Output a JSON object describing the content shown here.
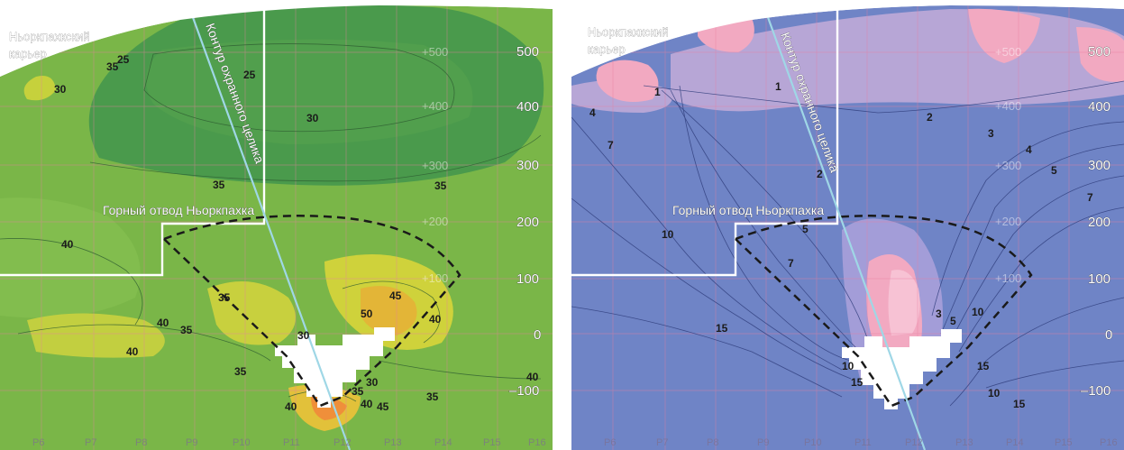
{
  "panels": [
    {
      "quarry_label_line1": "Ньоркпахкский",
      "quarry_label_line2": "карьер",
      "pillar_label": "Контур охранного целика",
      "allotment_label": "Горный отвод Ньоркпахка",
      "y_ticks": [
        "500",
        "400",
        "300",
        "200",
        "100",
        "0",
        "–100"
      ],
      "x_ticks": [
        "P6",
        "P7",
        "P8",
        "P9",
        "P10",
        "P11",
        "P12",
        "P13",
        "P14",
        "P15",
        "P16"
      ],
      "faint_ticks": [
        "+500",
        "+400",
        "+300",
        "+200",
        "+100"
      ],
      "contour_labels": [
        "25",
        "25",
        "35",
        "30",
        "30",
        "35",
        "35",
        "40",
        "40",
        "35",
        "35",
        "40",
        "35",
        "30",
        "30",
        "35",
        "40",
        "45",
        "50",
        "40",
        "40",
        "35",
        "40",
        "45"
      ]
    },
    {
      "quarry_label_line1": "Ньоркпахкский",
      "quarry_label_line2": "карьер",
      "pillar_label": "Контур охранного целика",
      "allotment_label": "Горный отвод Ньоркпахка",
      "y_ticks": [
        "500",
        "400",
        "300",
        "200",
        "100",
        "0",
        "–100"
      ],
      "x_ticks": [
        "P6",
        "P7",
        "P8",
        "P9",
        "P10",
        "P11",
        "P12",
        "P13",
        "P14",
        "P15",
        "P16"
      ],
      "faint_ticks": [
        "+500",
        "+400",
        "+300",
        "+200",
        "+100"
      ],
      "contour_labels": [
        "1",
        "1",
        "2",
        "3",
        "4",
        "5",
        "7",
        "2",
        "4",
        "7",
        "10",
        "15",
        "5",
        "7",
        "10",
        "15",
        "10",
        "15",
        "10",
        "15",
        "3",
        "5"
      ]
    }
  ],
  "colors": {
    "left_base": "#7ab648",
    "left_dark": "#4a9a4c",
    "left_yellow": "#d9cf2c",
    "right_base": "#6f84c6",
    "right_pink": "#f2a9c1",
    "right_light": "#b7a6d6",
    "grid": "#e77fa0"
  }
}
